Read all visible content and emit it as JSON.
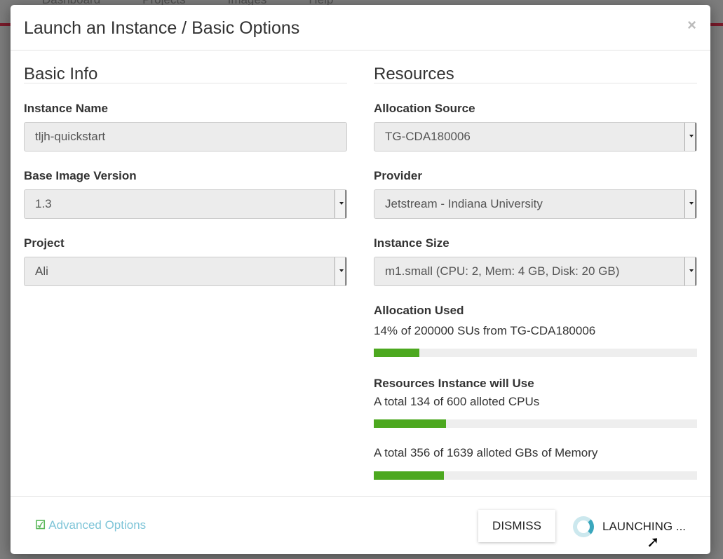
{
  "background_nav": [
    "Dashboard",
    "Projects",
    "Images",
    "Help"
  ],
  "modal": {
    "title": "Launch an Instance / Basic Options",
    "close": "×",
    "basic_info": {
      "heading": "Basic Info",
      "instance_name": {
        "label": "Instance Name",
        "value": "tljh-quickstart"
      },
      "base_image_version": {
        "label": "Base Image Version",
        "value": "1.3"
      },
      "project": {
        "label": "Project",
        "value": "Ali"
      }
    },
    "resources": {
      "heading": "Resources",
      "allocation_source": {
        "label": "Allocation Source",
        "value": "TG-CDA180006"
      },
      "provider": {
        "label": "Provider",
        "value": "Jetstream - Indiana University"
      },
      "instance_size": {
        "label": "Instance Size",
        "value": "m1.small (CPU: 2, Mem: 4 GB, Disk: 20 GB)"
      },
      "allocation_used": {
        "label": "Allocation Used",
        "text": "14% of 200000 SUs from TG-CDA180006",
        "percent": 14
      },
      "resources_use": {
        "label": "Resources Instance will Use",
        "cpu": {
          "text": "A total 134 of 600 alloted CPUs",
          "percent": 22.3
        },
        "memory": {
          "text": "A total 356 of 1639 alloted GBs of Memory",
          "percent": 21.7
        }
      }
    },
    "footer": {
      "advanced": "Advanced Options",
      "dismiss": "DISMISS",
      "launching": "LAUNCHING ..."
    },
    "colors": {
      "bar_fill": "#4ca81f",
      "link": "#7fc5d8",
      "spinner": "#3aa7bd"
    }
  }
}
